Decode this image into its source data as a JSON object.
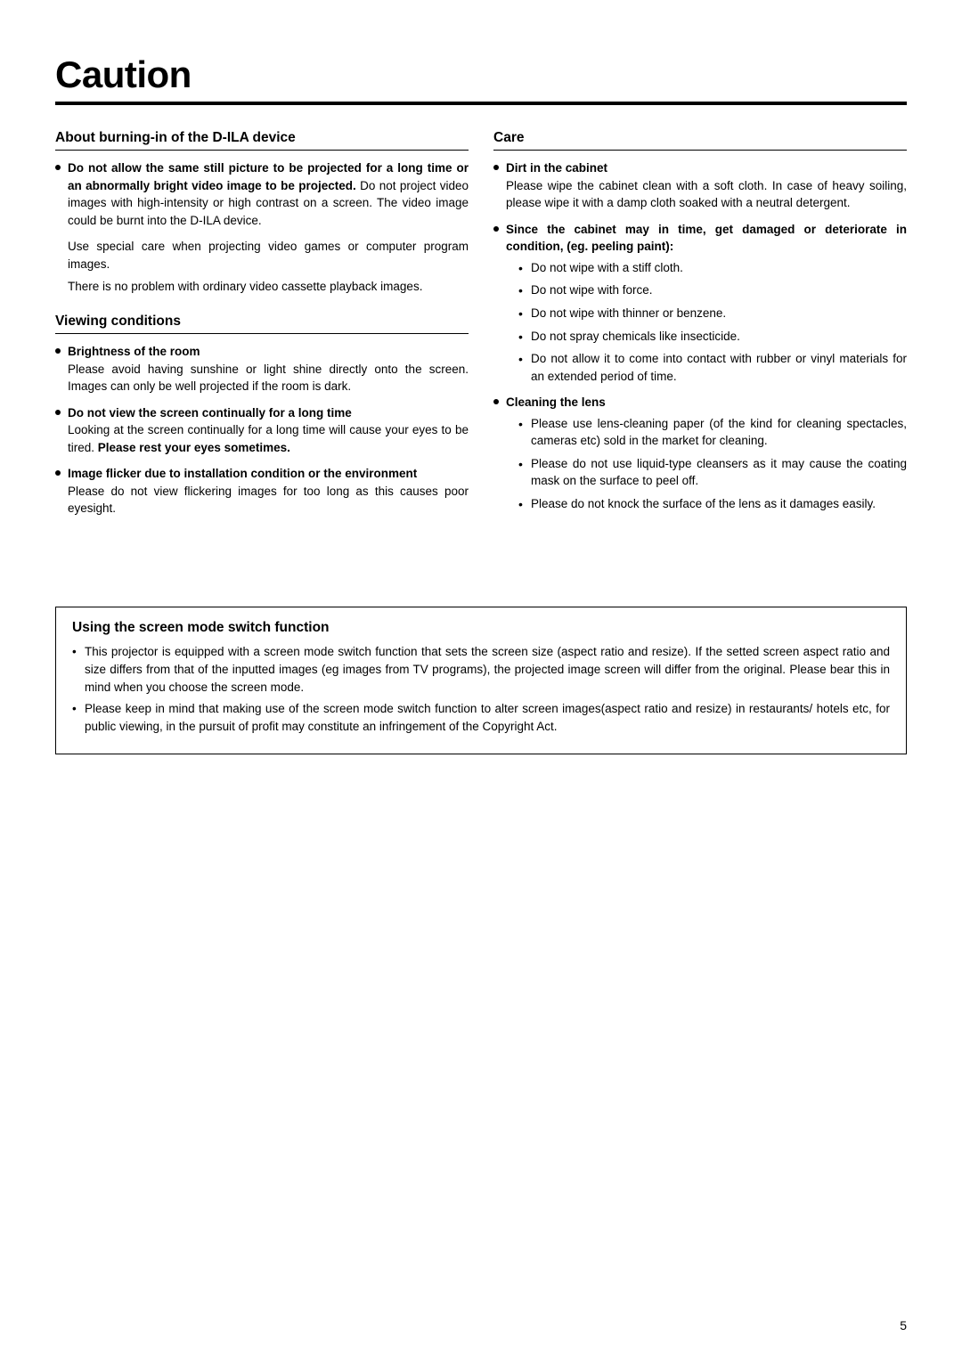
{
  "page": {
    "title": "Caution",
    "number": "5"
  },
  "left": {
    "s1": {
      "heading": "About burning-in of the D-ILA device",
      "b1": {
        "title": "Do not allow the same still picture to be projected for a long time or an abnormally bright video image to be projected.",
        "body": "Do not project video images with high-intensity or high contrast on a screen. The video image could be burnt into the D-ILA device."
      },
      "p1": "Use special care when projecting video games or computer program images.",
      "p2": "There is no problem with ordinary video cassette playback images."
    },
    "s2": {
      "heading": "Viewing conditions",
      "b1": {
        "title": "Brightness of the room",
        "body": "Please avoid having sunshine or light shine directly onto the screen. Images can only be well projected if the room is dark."
      },
      "b2": {
        "title": "Do not view the screen continually for a long time",
        "body1": "Looking at the screen continually for a long time will cause your eyes to be tired. ",
        "body2": "Please rest your eyes sometimes."
      },
      "b3": {
        "title": "Image flicker due to installation condition or the environment",
        "body": "Please do not view flickering images for too long as this causes poor eyesight."
      }
    }
  },
  "right": {
    "s1": {
      "heading": "Care",
      "b1": {
        "title": "Dirt in the cabinet",
        "body": "Please wipe the cabinet clean with a soft cloth.  In case of heavy soiling, please wipe it with a damp cloth soaked with a neutral detergent."
      },
      "b2": {
        "title": "Since the cabinet may in time, get damaged or deteriorate in condition, (eg. peeling paint):",
        "sub1": "Do not wipe with a stiff cloth.",
        "sub2": "Do not wipe with force.",
        "sub3": "Do not wipe with thinner or benzene.",
        "sub4": "Do not spray chemicals like insecticide.",
        "sub5": "Do not allow it to come into contact with rubber or vinyl materials for an extended period of time."
      },
      "b3": {
        "title": "Cleaning the lens",
        "sub1": "Please use lens-cleaning paper (of the kind for cleaning spectacles, cameras etc) sold in the market for cleaning.",
        "sub2": "Please do not use liquid-type cleansers as it may cause the coating mask on the surface to peel off.",
        "sub3": "Please do not knock the surface of the lens as it damages easily."
      }
    }
  },
  "box": {
    "heading": "Using the screen mode switch function",
    "i1": "This projector is equipped with a screen mode switch function that sets the screen size (aspect ratio and resize).  If the setted screen aspect ratio and size differs from that of the inputted images (eg images from TV programs), the projected image screen will differ from the original.  Please bear this in mind when you choose the screen mode.",
    "i2": "Please keep in mind that making use of the screen mode switch function to alter screen images(aspect ratio and resize) in restaurants/ hotels etc, for public viewing, in the pursuit of profit may constitute an infringement of the Copyright Act."
  }
}
